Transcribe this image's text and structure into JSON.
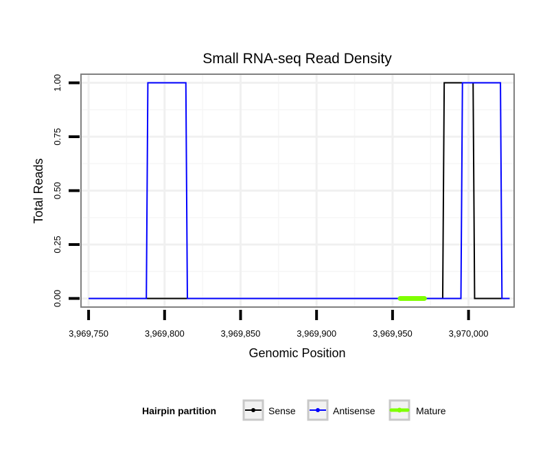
{
  "chart_data": {
    "type": "line",
    "title": "Small RNA-seq Read Density",
    "xlabel": "Genomic Position",
    "ylabel": "Total Reads",
    "xlim": [
      3969745,
      3970030
    ],
    "ylim": [
      -0.04,
      1.04
    ],
    "x_ticks": [
      3969750,
      3969800,
      3969850,
      3969900,
      3969950,
      3970000
    ],
    "x_tick_labels": [
      "3,969,750",
      "3,969,800",
      "3,969,850",
      "3,969,900",
      "3,969,950",
      "3,970,000"
    ],
    "y_ticks": [
      0,
      0.25,
      0.5,
      0.75,
      1.0
    ],
    "y_tick_labels": [
      "0.00",
      "0.25",
      "0.50",
      "0.75",
      "1.00"
    ],
    "grid": true,
    "legend": {
      "title": "Hairpin partition",
      "position": "bottom",
      "entries": [
        "Sense",
        "Antisense",
        "Mature"
      ]
    },
    "series": [
      {
        "name": "Sense",
        "color": "#000000",
        "x": [
          3969750,
          3969983,
          3969984,
          3970003,
          3970004,
          3970027
        ],
        "y": [
          0,
          0,
          1,
          1,
          0,
          0
        ]
      },
      {
        "name": "Antisense",
        "color": "#0000ff",
        "x": [
          3969750,
          3969788,
          3969789,
          3969814,
          3969815,
          3969995,
          3969996,
          3970021,
          3970022,
          3970027
        ],
        "y": [
          0,
          0,
          1,
          1,
          0,
          0,
          1,
          1,
          0,
          0
        ]
      },
      {
        "name": "Mature",
        "color": "#7fff00",
        "x": [
          3969955,
          3969971
        ],
        "y": [
          0,
          0
        ]
      }
    ]
  }
}
